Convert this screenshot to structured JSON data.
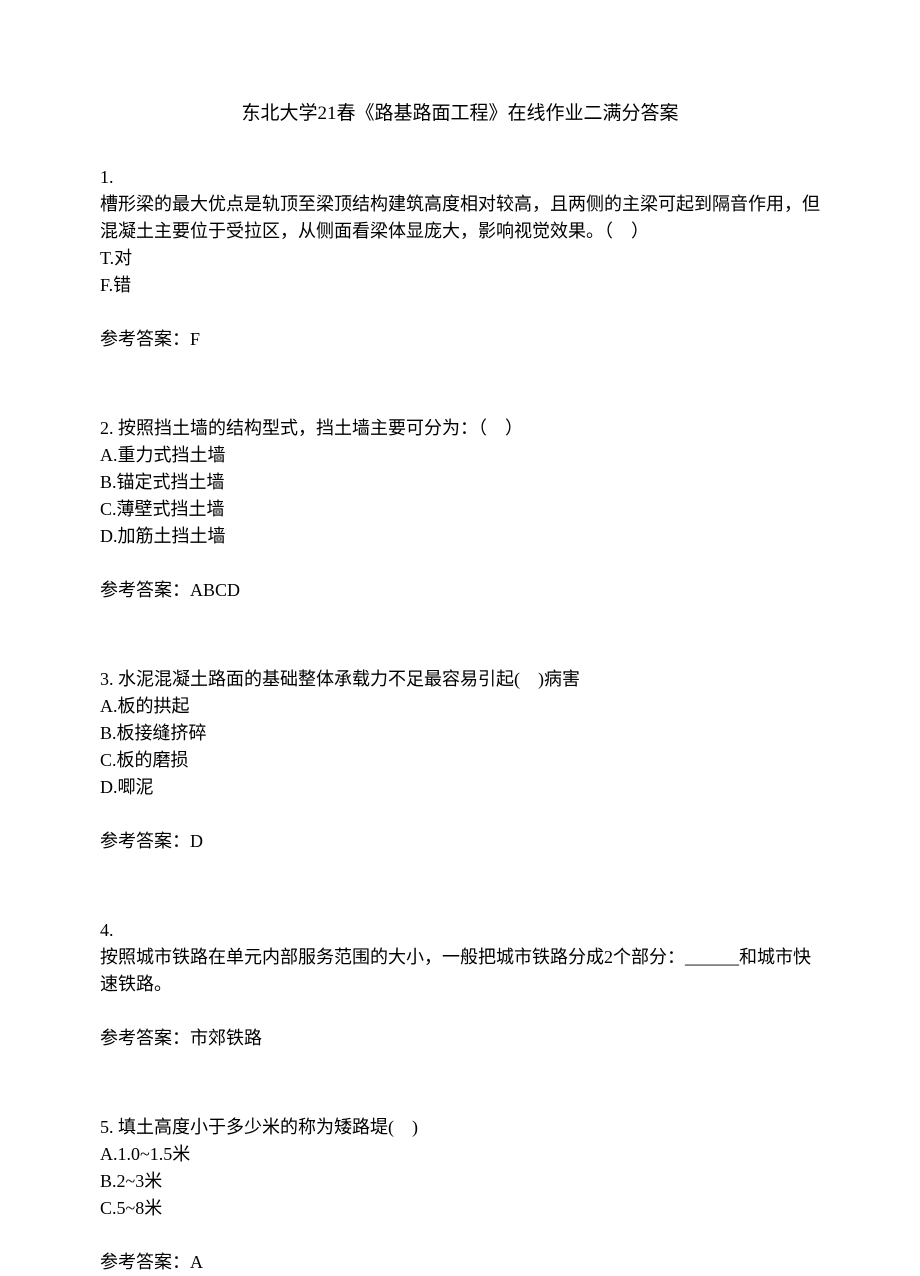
{
  "title": "东北大学21春《路基路面工程》在线作业二满分答案",
  "questions": [
    {
      "num": "1.",
      "text": "槽形梁的最大优点是轨顶至梁顶结构建筑高度相对较高，且两侧的主梁可起到隔音作用，但混凝土主要位于受拉区，从侧面看梁体显庞大，影响视觉效果。（　）",
      "options": [
        "T.对",
        "F.错"
      ],
      "answer": "参考答案：F"
    },
    {
      "num": "2. ",
      "text": "按照挡土墙的结构型式，挡土墙主要可分为：（　）",
      "options": [
        "A.重力式挡土墙",
        "B.锚定式挡土墙",
        "C.薄壁式挡土墙",
        "D.加筋土挡土墙"
      ],
      "answer": "参考答案：ABCD"
    },
    {
      "num": "3. ",
      "text": "水泥混凝土路面的基础整体承载力不足最容易引起(　)病害",
      "options": [
        "A.板的拱起",
        "B.板接缝挤碎",
        "C.板的磨损",
        "D.唧泥"
      ],
      "answer": "参考答案：D"
    },
    {
      "num": "4.",
      "text": "按照城市铁路在单元内部服务范围的大小，一般把城市铁路分成2个部分：______和城市快速铁路。",
      "options": [],
      "answer": "参考答案：市郊铁路"
    },
    {
      "num": "5. ",
      "text": "填土高度小于多少米的称为矮路堤(　)",
      "options": [
        "A.1.0~1.5米",
        "B.2~3米",
        "C.5~8米"
      ],
      "answer": "参考答案：A"
    }
  ]
}
